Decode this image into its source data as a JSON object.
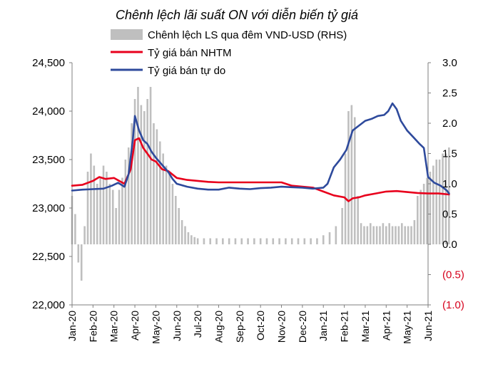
{
  "chart_data": {
    "type": "line",
    "title": "Chênh lệch lãi suất ON với diễn biến tỷ giá",
    "left_axis": {
      "ylim": [
        22000,
        24500
      ],
      "ticks": [
        "22,000",
        "22,500",
        "23,000",
        "23,500",
        "24,000",
        "24,500"
      ],
      "tick_values": [
        22000,
        22500,
        23000,
        23500,
        24000,
        24500
      ]
    },
    "right_axis": {
      "ylim": [
        -1.0,
        3.0
      ],
      "ticks": [
        "(1.0)",
        "(0.5)",
        "0.0",
        "0.5",
        "1.0",
        "1.5",
        "2.0",
        "2.5",
        "3.0"
      ],
      "tick_values": [
        -1.0,
        -0.5,
        0.0,
        0.5,
        1.0,
        1.5,
        2.0,
        2.5,
        3.0
      ],
      "negative_color": "#d6001c"
    },
    "categories": [
      "Jan-20",
      "Feb-20",
      "Mar-20",
      "Apr-20",
      "May-20",
      "Jun-20",
      "Jul-20",
      "Aug-20",
      "Sep-20",
      "Oct-20",
      "Nov-20",
      "Dec-20",
      "Jan-21",
      "Feb-21",
      "Mar-21",
      "Apr-21",
      "May-21",
      "Jun-21"
    ],
    "series": [
      {
        "name": "Chênh lệch LS qua đêm VND-USD (RHS)",
        "kind": "bar",
        "axis": "right",
        "color": "#bfbfbf",
        "x": [
          0,
          0.15,
          0.3,
          0.45,
          0.6,
          0.75,
          0.9,
          1.05,
          1.2,
          1.35,
          1.5,
          1.65,
          1.8,
          1.95,
          2.1,
          2.25,
          2.4,
          2.55,
          2.7,
          2.85,
          3.0,
          3.15,
          3.3,
          3.45,
          3.6,
          3.75,
          3.9,
          4.05,
          4.2,
          4.35,
          4.5,
          4.65,
          4.8,
          4.95,
          5.1,
          5.25,
          5.4,
          5.55,
          5.7,
          5.85,
          6.0,
          6.3,
          6.6,
          6.9,
          7.2,
          7.5,
          7.8,
          8.1,
          8.4,
          8.7,
          9.0,
          9.3,
          9.6,
          9.9,
          10.2,
          10.5,
          10.8,
          11.1,
          11.4,
          11.7,
          12.0,
          12.3,
          12.6,
          12.9,
          13.05,
          13.2,
          13.35,
          13.5,
          13.65,
          13.8,
          13.95,
          14.1,
          14.25,
          14.4,
          14.55,
          14.7,
          14.85,
          15.0,
          15.15,
          15.3,
          15.45,
          15.6,
          15.75,
          15.9,
          16.05,
          16.2,
          16.35,
          16.5,
          16.65,
          16.8,
          16.95,
          17.1,
          17.25,
          17.4,
          17.55,
          17.7,
          17.85,
          18.0
        ],
        "values": [
          0.8,
          0.5,
          -0.3,
          -0.6,
          0.3,
          1.2,
          1.5,
          1.3,
          1.0,
          1.1,
          1.3,
          1.2,
          1.0,
          0.9,
          0.6,
          0.9,
          1.1,
          1.4,
          1.6,
          2.0,
          2.4,
          2.6,
          2.3,
          2.2,
          2.4,
          2.6,
          2.0,
          1.9,
          1.7,
          1.5,
          1.3,
          1.2,
          1.0,
          0.8,
          0.6,
          0.4,
          0.3,
          0.2,
          0.15,
          0.12,
          0.1,
          0.1,
          0.1,
          0.1,
          0.1,
          0.1,
          0.1,
          0.1,
          0.1,
          0.1,
          0.1,
          0.1,
          0.1,
          0.1,
          0.1,
          0.1,
          0.1,
          0.1,
          0.1,
          0.1,
          0.15,
          0.2,
          0.3,
          0.6,
          1.5,
          2.2,
          2.3,
          2.1,
          0.8,
          0.35,
          0.3,
          0.3,
          0.35,
          0.3,
          0.3,
          0.3,
          0.35,
          0.3,
          0.35,
          0.3,
          0.3,
          0.3,
          0.35,
          0.3,
          0.3,
          0.3,
          0.4,
          0.8,
          0.9,
          1.0,
          1.1,
          1.2,
          1.3,
          1.4,
          1.4,
          1.5,
          1.5,
          1.6
        ]
      },
      {
        "name": "Tỷ giá bán NHTM",
        "kind": "line",
        "axis": "left",
        "color": "#e8001c",
        "x": [
          0,
          0.5,
          1.0,
          1.3,
          1.6,
          2.0,
          2.5,
          2.8,
          3.0,
          3.2,
          3.4,
          3.6,
          3.8,
          4.0,
          4.3,
          4.6,
          5.0,
          5.5,
          6.0,
          6.5,
          7.0,
          8.0,
          9.0,
          10.0,
          10.5,
          11.0,
          11.5,
          12.0,
          12.5,
          13.0,
          13.2,
          13.4,
          13.7,
          14.0,
          14.5,
          15.0,
          15.5,
          16.0,
          16.5,
          17.0,
          17.5,
          18.0
        ],
        "values": [
          23230,
          23240,
          23280,
          23320,
          23300,
          23310,
          23250,
          23400,
          23700,
          23720,
          23620,
          23560,
          23500,
          23480,
          23400,
          23380,
          23310,
          23290,
          23280,
          23270,
          23265,
          23265,
          23265,
          23265,
          23230,
          23220,
          23210,
          23170,
          23130,
          23110,
          23070,
          23100,
          23110,
          23130,
          23150,
          23170,
          23175,
          23165,
          23155,
          23150,
          23150,
          23140
        ]
      },
      {
        "name": "Tỷ giá bán tự do",
        "kind": "line",
        "axis": "left",
        "color": "#2e4a9c",
        "x": [
          0,
          0.5,
          1.0,
          1.5,
          1.9,
          2.2,
          2.5,
          2.7,
          2.9,
          3.0,
          3.2,
          3.4,
          3.6,
          3.8,
          4.0,
          4.2,
          4.4,
          4.6,
          4.8,
          5.0,
          5.5,
          6.0,
          6.5,
          7.0,
          7.5,
          8.0,
          8.5,
          9.0,
          9.5,
          10.0,
          10.5,
          11.0,
          11.5,
          12.0,
          12.2,
          12.5,
          12.8,
          13.1,
          13.4,
          13.7,
          14.0,
          14.3,
          14.6,
          14.9,
          15.1,
          15.3,
          15.5,
          15.7,
          16.0,
          16.3,
          16.6,
          16.8,
          17.0,
          17.3,
          17.6,
          17.9,
          18.0
        ],
        "values": [
          23180,
          23190,
          23195,
          23200,
          23230,
          23260,
          23220,
          23350,
          23700,
          23950,
          23800,
          23700,
          23660,
          23580,
          23520,
          23470,
          23420,
          23370,
          23300,
          23250,
          23220,
          23200,
          23190,
          23190,
          23210,
          23200,
          23195,
          23205,
          23210,
          23220,
          23215,
          23210,
          23200,
          23210,
          23250,
          23420,
          23500,
          23600,
          23800,
          23850,
          23900,
          23920,
          23950,
          23960,
          24000,
          24080,
          24020,
          23900,
          23800,
          23730,
          23660,
          23620,
          23320,
          23260,
          23230,
          23180,
          23150
        ]
      }
    ],
    "legend": "top-center"
  }
}
